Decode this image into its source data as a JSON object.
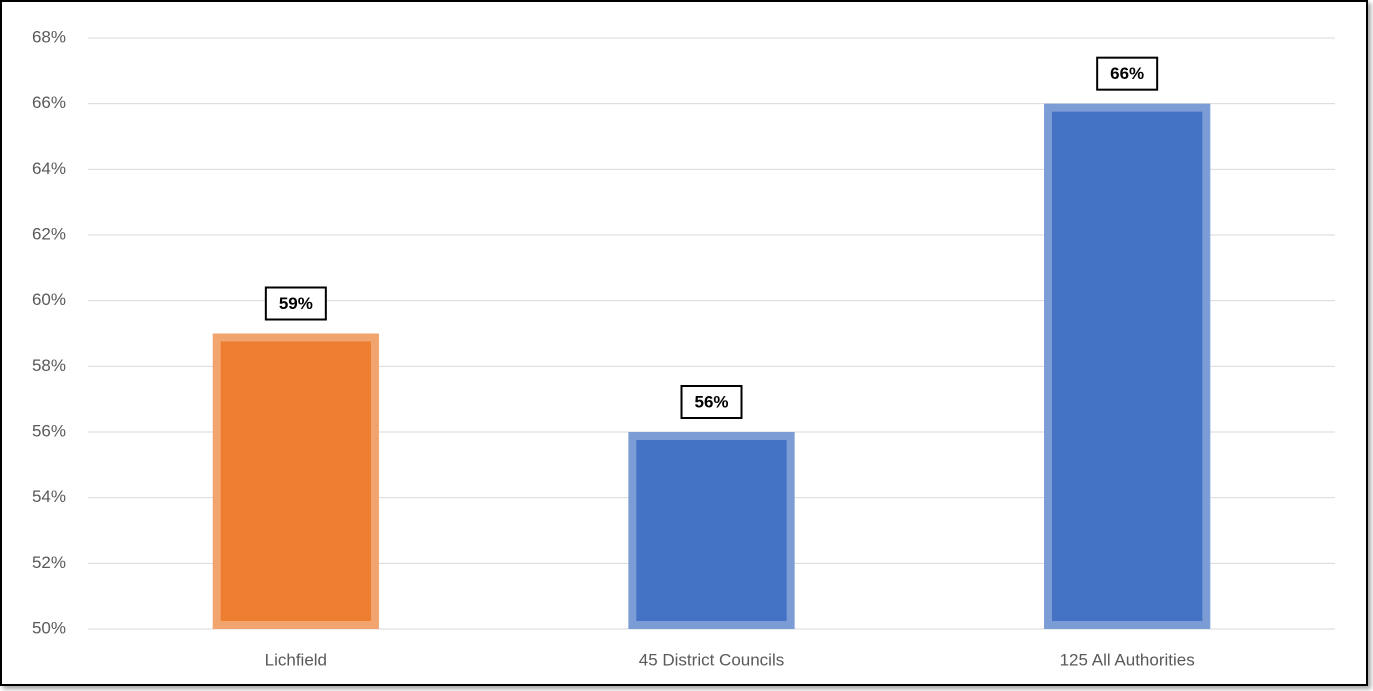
{
  "chart_data": {
    "type": "bar",
    "categories": [
      "Lichfield",
      "45 District Councils",
      "125 All Authorities"
    ],
    "values": [
      59,
      56,
      66
    ],
    "value_labels": [
      "59%",
      "56%",
      "66%"
    ],
    "colors": [
      "#ed7d31",
      "#4472c4",
      "#4472c4"
    ],
    "ylim": [
      50,
      68
    ],
    "yticks": [
      {
        "value": 50,
        "label": "50%"
      },
      {
        "value": 52,
        "label": "52%"
      },
      {
        "value": 54,
        "label": "54%"
      },
      {
        "value": 56,
        "label": "56%"
      },
      {
        "value": 58,
        "label": "58%"
      },
      {
        "value": 60,
        "label": "60%"
      },
      {
        "value": 62,
        "label": "62%"
      },
      {
        "value": 64,
        "label": "64%"
      },
      {
        "value": 66,
        "label": "66%"
      },
      {
        "value": 68,
        "label": "68%"
      }
    ],
    "grid": true
  }
}
